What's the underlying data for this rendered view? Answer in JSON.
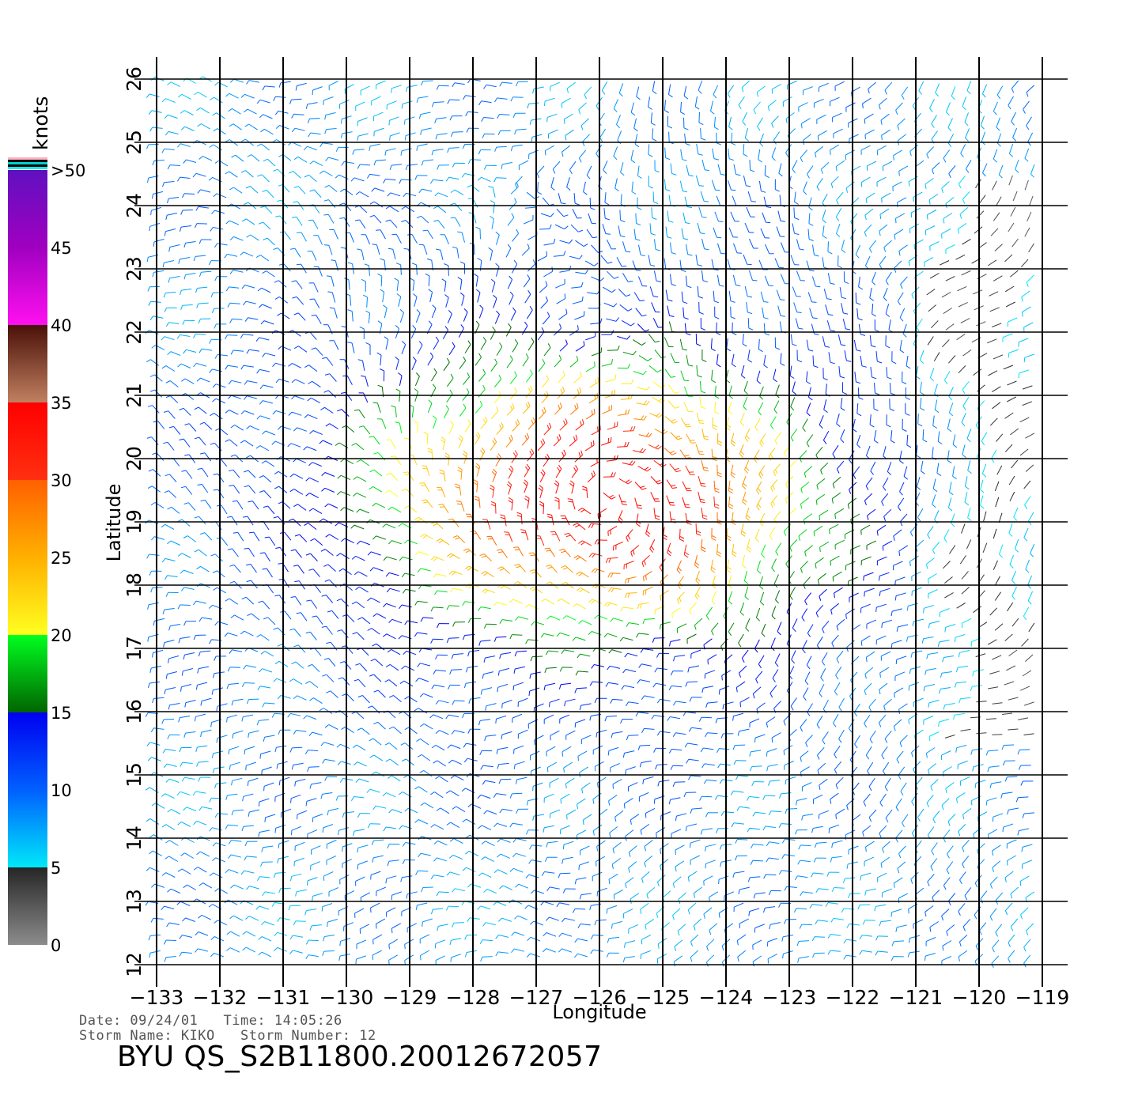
{
  "chart_data": {
    "type": "wind-barb-map",
    "xlabel": "Longitude",
    "ylabel": "Latitude",
    "xlim": [
      -133,
      -119
    ],
    "ylim": [
      12,
      26
    ],
    "x_ticks": [
      "-133",
      "-132",
      "-131",
      "-130",
      "-129",
      "-128",
      "-127",
      "-126",
      "-125",
      "-124",
      "-123",
      "-122",
      "-121",
      "-120",
      "-119"
    ],
    "y_ticks": [
      "12",
      "13",
      "14",
      "15",
      "16",
      "17",
      "18",
      "19",
      "20",
      "21",
      "22",
      "23",
      "24",
      "25",
      "26"
    ],
    "grid": true,
    "storm_center": {
      "lon": -126.0,
      "lat": 19.4
    },
    "colorbar": {
      "unit_label": "knots",
      "tick_labels": [
        "0",
        "5",
        "10",
        "15",
        "20",
        "25",
        "30",
        "35",
        "40",
        "45",
        ">50"
      ],
      "bands": [
        {
          "min": 0,
          "max": 5,
          "colors": [
            "#8c8c8c",
            "#262626"
          ]
        },
        {
          "min": 5,
          "max": 15,
          "colors": [
            "#00e8f8",
            "#0060ff",
            "#0000f0"
          ]
        },
        {
          "min": 15,
          "max": 20,
          "colors": [
            "#006400",
            "#00ff20"
          ]
        },
        {
          "min": 20,
          "max": 30,
          "colors": [
            "#ffff20",
            "#ffb000",
            "#ff6000"
          ]
        },
        {
          "min": 30,
          "max": 35,
          "colors": [
            "#ff3010",
            "#ff0000"
          ]
        },
        {
          "min": 35,
          "max": 40,
          "colors": [
            "#c08060",
            "#4a1008"
          ]
        },
        {
          "min": 40,
          "max": 50,
          "colors": [
            "#ff10f0",
            "#a000c0",
            "#6010c0"
          ]
        }
      ],
      "overflow_stripes": [
        "#ffb0c0",
        "#000000",
        "#00d0d0",
        "#000000",
        "#00f0f0"
      ]
    }
  },
  "meta": {
    "date_line": "Date: 09/24/01   Time: 14:05:26",
    "storm_line": "Storm Name: KIKO   Storm Number: 12",
    "title": "BYU QS_S2B11800.20012672057"
  }
}
